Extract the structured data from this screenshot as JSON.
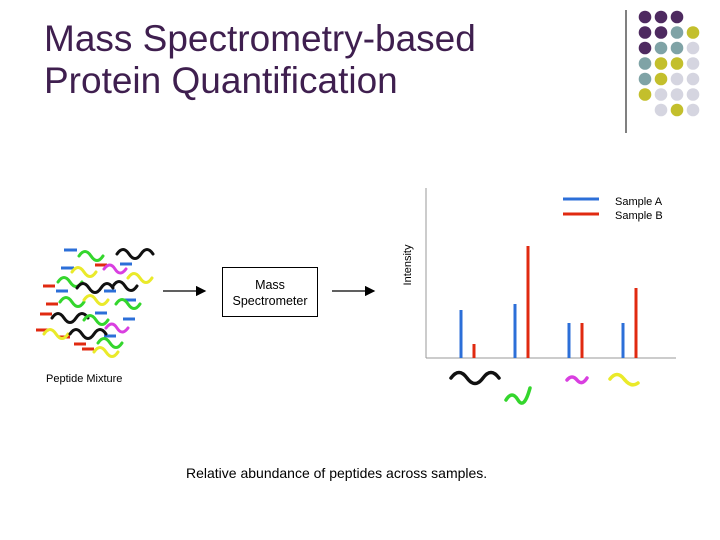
{
  "slide": {
    "title_line1": "Mass Spectrometry-based",
    "title_line2": "Protein Quantification",
    "instrument_line1": "Mass",
    "instrument_line2": "Spectrometer",
    "mixture_label": "Peptide Mixture",
    "caption": "Relative abundance of peptides across samples."
  },
  "colors": {
    "title": "#3f1f4f",
    "dot_purple": "#4e2a60",
    "dot_teal": "#7fa3a6",
    "dot_olive": "#c3bf2c",
    "dot_gray": "#d5d5e0",
    "sample_a": "#2c6fd8",
    "sample_b": "#e02a10",
    "peptide_black": "#111111",
    "peptide_green": "#34d62d",
    "peptide_magenta": "#d93fe0",
    "peptide_yellow": "#eaea2a"
  },
  "chart_data": {
    "type": "bar",
    "title": "",
    "xlabel": "",
    "ylabel": "Intensity",
    "categories": [
      "black peptide",
      "green peptide",
      "magenta peptide",
      "yellow peptide"
    ],
    "series": [
      {
        "name": "Sample A",
        "values": [
          48,
          54,
          35,
          35
        ]
      },
      {
        "name": "Sample B",
        "values": [
          14,
          112,
          35,
          70
        ]
      }
    ],
    "ylim": [
      0,
      170
    ],
    "grid": false,
    "legend": "top-right"
  }
}
